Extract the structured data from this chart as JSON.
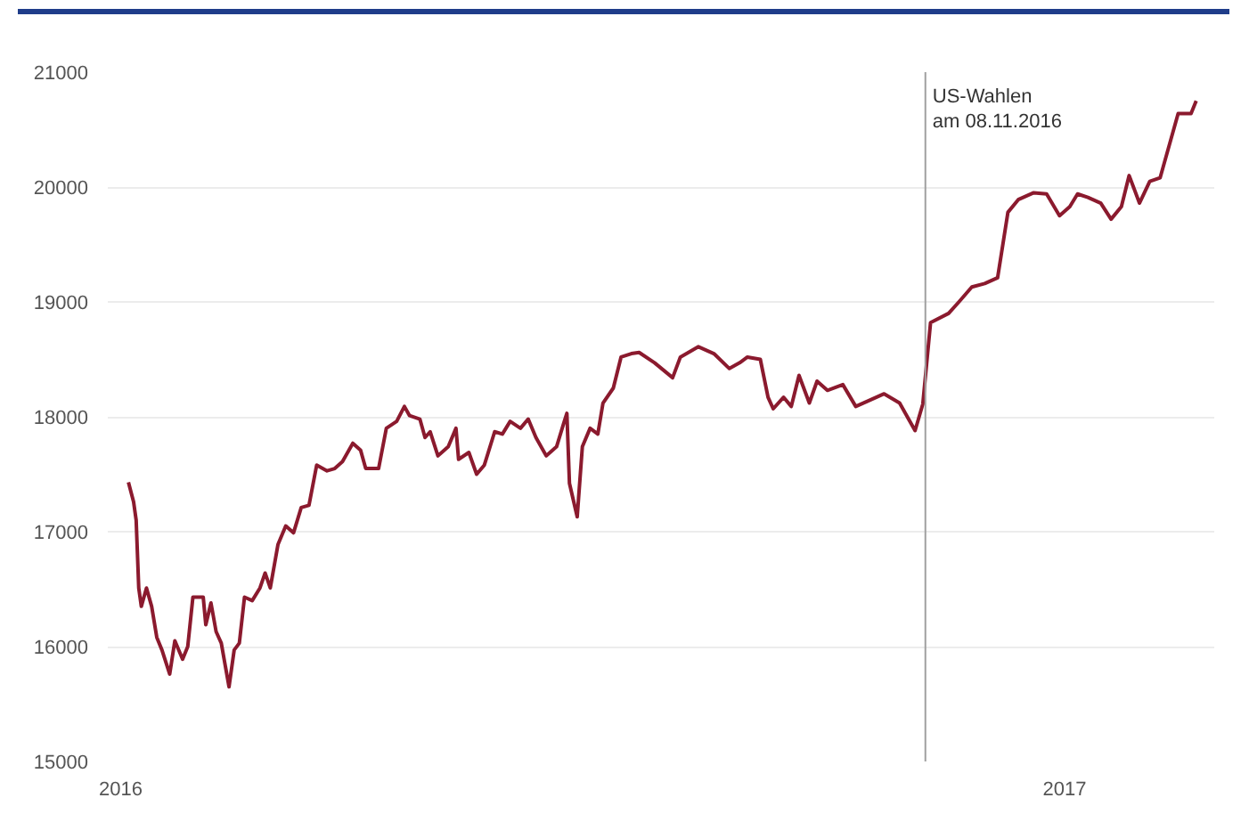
{
  "chart_data": {
    "type": "line",
    "x": [
      "2016-01-04",
      "2016-01-06",
      "2016-01-07",
      "2016-01-08",
      "2016-01-09",
      "2016-01-11",
      "2016-01-13",
      "2016-01-15",
      "2016-01-17",
      "2016-01-20",
      "2016-01-22",
      "2016-01-25",
      "2016-01-27",
      "2016-01-29",
      "2016-02-02",
      "2016-02-03",
      "2016-02-05",
      "2016-02-07",
      "2016-02-09",
      "2016-02-12",
      "2016-02-14",
      "2016-02-16",
      "2016-02-18",
      "2016-02-21",
      "2016-02-24",
      "2016-02-26",
      "2016-02-28",
      "2016-03-02",
      "2016-03-05",
      "2016-03-08",
      "2016-03-11",
      "2016-03-14",
      "2016-03-17",
      "2016-03-21",
      "2016-03-24",
      "2016-03-27",
      "2016-03-31",
      "2016-04-03",
      "2016-04-05",
      "2016-04-10",
      "2016-04-13",
      "2016-04-17",
      "2016-04-20",
      "2016-04-22",
      "2016-04-26",
      "2016-04-28",
      "2016-04-30",
      "2016-05-03",
      "2016-05-07",
      "2016-05-10",
      "2016-05-11",
      "2016-05-15",
      "2016-05-18",
      "2016-05-21",
      "2016-05-25",
      "2016-05-28",
      "2016-05-31",
      "2016-06-04",
      "2016-06-07",
      "2016-06-10",
      "2016-06-14",
      "2016-06-18",
      "2016-06-21",
      "2016-06-22",
      "2016-06-23",
      "2016-06-26",
      "2016-06-28",
      "2016-07-01",
      "2016-07-04",
      "2016-07-06",
      "2016-07-10",
      "2016-07-13",
      "2016-07-17",
      "2016-07-20",
      "2016-07-26",
      "2016-08-02",
      "2016-08-05",
      "2016-08-12",
      "2016-08-18",
      "2016-08-24",
      "2016-08-28",
      "2016-08-31",
      "2016-09-05",
      "2016-09-08",
      "2016-09-10",
      "2016-09-14",
      "2016-09-17",
      "2016-09-20",
      "2016-09-24",
      "2016-09-27",
      "2016-10-01",
      "2016-10-07",
      "2016-10-12",
      "2016-10-18",
      "2016-10-23",
      "2016-10-29",
      "2016-11-04",
      "2016-11-07",
      "2016-11-10",
      "2016-11-17",
      "2016-11-21",
      "2016-11-26",
      "2016-12-01",
      "2016-12-06",
      "2016-12-10",
      "2016-12-14",
      "2016-12-20",
      "2016-12-25",
      "2016-12-30",
      "2017-01-03",
      "2017-01-06",
      "2017-01-10",
      "2017-01-15",
      "2017-01-19",
      "2017-01-23",
      "2017-01-26",
      "2017-01-30",
      "2017-02-03",
      "2017-02-07",
      "2017-02-14",
      "2017-02-19",
      "2017-02-21"
    ],
    "series": [
      {
        "color": "#8b1a2e",
        "values": [
          17430,
          17260,
          17100,
          16510,
          16350,
          16510,
          16350,
          16080,
          15970,
          15760,
          16050,
          15890,
          16000,
          16430,
          16430,
          16190,
          16380,
          16130,
          16030,
          15650,
          15970,
          16030,
          16430,
          16400,
          16510,
          16640,
          16510,
          16890,
          17050,
          16990,
          17210,
          17230,
          17580,
          17530,
          17550,
          17610,
          17770,
          17710,
          17550,
          17550,
          17900,
          17960,
          18090,
          18010,
          17980,
          17820,
          17870,
          17660,
          17740,
          17900,
          17630,
          17690,
          17500,
          17580,
          17870,
          17850,
          17960,
          17900,
          17980,
          17820,
          17660,
          17740,
          17960,
          18030,
          17420,
          17130,
          17740,
          17900,
          17850,
          18120,
          18250,
          18520,
          18550,
          18560,
          18470,
          18340,
          18520,
          18610,
          18550,
          18420,
          18470,
          18520,
          18500,
          18170,
          18070,
          18170,
          18090,
          18360,
          18120,
          18310,
          18230,
          18280,
          18090,
          18150,
          18200,
          18120,
          17880,
          18110,
          18820,
          18900,
          19000,
          19130,
          19160,
          19210,
          19780,
          19890,
          19950,
          19940,
          19750,
          19830,
          19940,
          19910,
          19860,
          19720,
          19830,
          20100,
          19860,
          20050,
          20080,
          20640,
          20640,
          20750
        ]
      }
    ],
    "xlim": [
      "2015-12-27",
      "2017-02-28"
    ],
    "xticks": [
      "2016",
      "2017"
    ],
    "ylim": [
      15000,
      21000
    ],
    "yticks": [
      15000,
      16000,
      17000,
      18000,
      19000,
      20000,
      21000
    ],
    "grid": "y",
    "ref_lines": [
      {
        "axis": "x",
        "value": "2016-11-08",
        "label": "US-Wahlen\nam 08.11.2016",
        "color": "#a0a0a0"
      }
    ]
  }
}
